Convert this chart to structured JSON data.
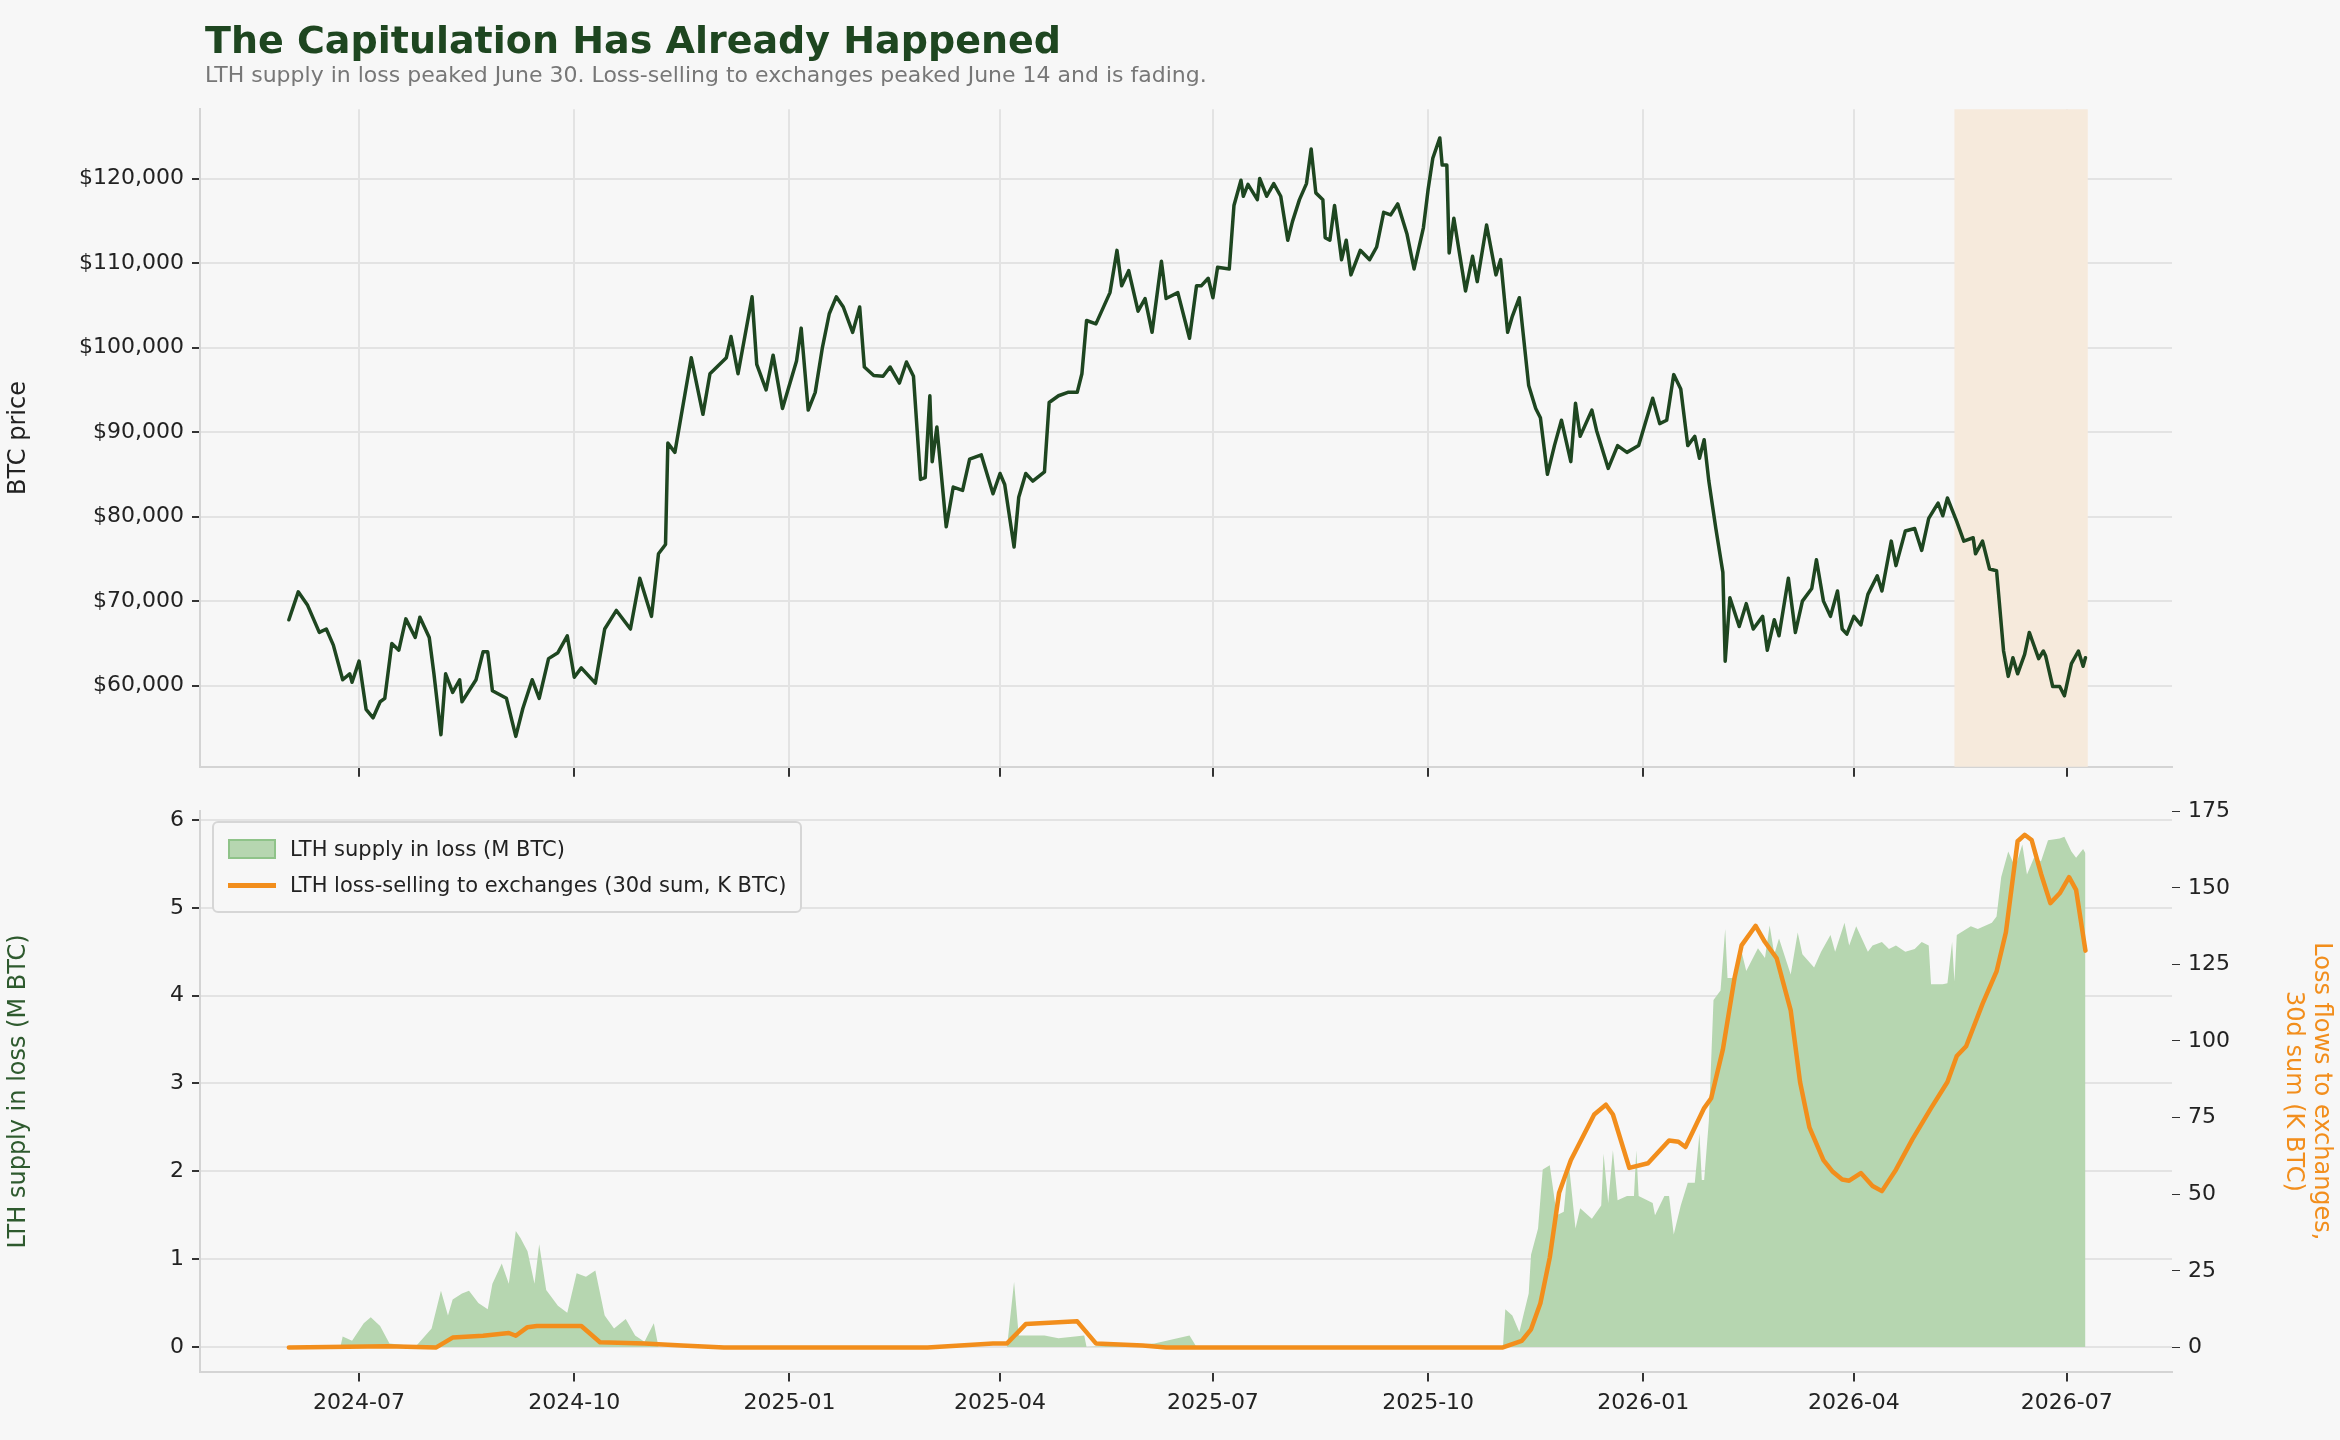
{
  "chart_data": [
    {
      "type": "line",
      "title": "The Capitulation Has Already Happened",
      "subtitle": "LTH supply in loss peaked June 30. Loss-selling to exchanges peaked June 14 and is fading.",
      "ylabel": "BTC price",
      "tick_labels": "y",
      "grid": true,
      "xlim": [
        "2024-04-24",
        "2026-08-15"
      ],
      "xticks": [
        {
          "value": "2024-07-01",
          "label": null
        },
        {
          "value": "2024-10-01",
          "label": null
        },
        {
          "value": "2025-01-01",
          "label": null
        },
        {
          "value": "2025-04-01",
          "label": null
        },
        {
          "value": "2025-07-01",
          "label": null
        },
        {
          "value": "2025-10-01",
          "label": null
        },
        {
          "value": "2026-01-01",
          "label": null
        },
        {
          "value": "2026-04-01",
          "label": null
        },
        {
          "value": "2026-07-01",
          "label": null
        }
      ],
      "ylim": [
        50400,
        128200
      ],
      "yticks": [
        {
          "value": 60000,
          "label": "$60,000"
        },
        {
          "value": 70000,
          "label": "$70,000"
        },
        {
          "value": 80000,
          "label": "$80,000"
        },
        {
          "value": 90000,
          "label": "$90,000"
        },
        {
          "value": 100000,
          "label": "$100,000"
        },
        {
          "value": 110000,
          "label": "$110,000"
        },
        {
          "value": 120000,
          "label": "$120,000"
        }
      ],
      "bands": [
        {
          "axis": "x",
          "from": "2026-05-14",
          "to": "2026-07-10",
          "color": "#f6eadc"
        }
      ],
      "series": [
        {
          "color": "#1e4620",
          "x": [
            "2024-06-01",
            "2024-06-05",
            "2024-06-09",
            "2024-06-14",
            "2024-06-17",
            "2024-06-20",
            "2024-06-24",
            "2024-06-27",
            "2024-06-28",
            "2024-07-01",
            "2024-07-04",
            "2024-07-07",
            "2024-07-10",
            "2024-07-12",
            "2024-07-15",
            "2024-07-18",
            "2024-07-21",
            "2024-07-25",
            "2024-07-27",
            "2024-07-31",
            "2024-08-02",
            "2024-08-05",
            "2024-08-07",
            "2024-08-10",
            "2024-08-13",
            "2024-08-14",
            "2024-08-20",
            "2024-08-23",
            "2024-08-25",
            "2024-08-27",
            "2024-09-02",
            "2024-09-06",
            "2024-09-09",
            "2024-09-13",
            "2024-09-16",
            "2024-09-20",
            "2024-09-24",
            "2024-09-28",
            "2024-10-01",
            "2024-10-04",
            "2024-10-10",
            "2024-10-14",
            "2024-10-19",
            "2024-10-25",
            "2024-10-29",
            "2024-11-03",
            "2024-11-06",
            "2024-11-09",
            "2024-11-10",
            "2024-11-13",
            "2024-11-15",
            "2024-11-20",
            "2024-11-25",
            "2024-11-28",
            "2024-12-05",
            "2024-12-07",
            "2024-12-10",
            "2024-12-16",
            "2024-12-18",
            "2024-12-22",
            "2024-12-25",
            "2024-12-29",
            "2025-01-04",
            "2025-01-06",
            "2025-01-09",
            "2025-01-12",
            "2025-01-15",
            "2025-01-18",
            "2025-01-21",
            "2025-01-24",
            "2025-01-28",
            "2025-01-31",
            "2025-02-02",
            "2025-02-06",
            "2025-02-10",
            "2025-02-13",
            "2025-02-17",
            "2025-02-20",
            "2025-02-23",
            "2025-02-26",
            "2025-02-28",
            "2025-03-02",
            "2025-03-03",
            "2025-03-05",
            "2025-03-09",
            "2025-03-12",
            "2025-03-16",
            "2025-03-19",
            "2025-03-24",
            "2025-03-29",
            "2025-04-01",
            "2025-04-03",
            "2025-04-07",
            "2025-04-09",
            "2025-04-12",
            "2025-04-15",
            "2025-04-20",
            "2025-04-22",
            "2025-04-26",
            "2025-04-30",
            "2025-05-04",
            "2025-05-06",
            "2025-05-08",
            "2025-05-12",
            "2025-05-18",
            "2025-05-21",
            "2025-05-23",
            "2025-05-26",
            "2025-05-30",
            "2025-06-02",
            "2025-06-05",
            "2025-06-09",
            "2025-06-11",
            "2025-06-16",
            "2025-06-21",
            "2025-06-24",
            "2025-06-26",
            "2025-06-29",
            "2025-07-01",
            "2025-07-03",
            "2025-07-08",
            "2025-07-10",
            "2025-07-13",
            "2025-07-14",
            "2025-07-16",
            "2025-07-20",
            "2025-07-21",
            "2025-07-24",
            "2025-07-27",
            "2025-07-30",
            "2025-08-02",
            "2025-08-04",
            "2025-08-07",
            "2025-08-10",
            "2025-08-12",
            "2025-08-14",
            "2025-08-17",
            "2025-08-18",
            "2025-08-20",
            "2025-08-22",
            "2025-08-25",
            "2025-08-27",
            "2025-08-29",
            "2025-09-02",
            "2025-09-06",
            "2025-09-09",
            "2025-09-12",
            "2025-09-15",
            "2025-09-18",
            "2025-09-22",
            "2025-09-25",
            "2025-09-29",
            "2025-10-01",
            "2025-10-03",
            "2025-10-06",
            "2025-10-07",
            "2025-10-09",
            "2025-10-10",
            "2025-10-12",
            "2025-10-17",
            "2025-10-20",
            "2025-10-22",
            "2025-10-26",
            "2025-10-30",
            "2025-11-01",
            "2025-11-04",
            "2025-11-06",
            "2025-11-09",
            "2025-11-13",
            "2025-11-16",
            "2025-11-18",
            "2025-11-21",
            "2025-11-24",
            "2025-11-27",
            "2025-12-01",
            "2025-12-03",
            "2025-12-05",
            "2025-12-10",
            "2025-12-12",
            "2025-12-17",
            "2025-12-21",
            "2025-12-25",
            "2025-12-30",
            "2026-01-05",
            "2026-01-08",
            "2026-01-11",
            "2026-01-14",
            "2026-01-17",
            "2026-01-20",
            "2026-01-23",
            "2026-01-25",
            "2026-01-27",
            "2026-01-29",
            "2026-02-01",
            "2026-02-04",
            "2026-02-05",
            "2026-02-07",
            "2026-02-11",
            "2026-02-14",
            "2026-02-17",
            "2026-02-21",
            "2026-02-23",
            "2026-02-26",
            "2026-02-28",
            "2026-03-04",
            "2026-03-07",
            "2026-03-10",
            "2026-03-14",
            "2026-03-16",
            "2026-03-19",
            "2026-03-22",
            "2026-03-25",
            "2026-03-27",
            "2026-03-29",
            "2026-04-01",
            "2026-04-04",
            "2026-04-07",
            "2026-04-11",
            "2026-04-13",
            "2026-04-17",
            "2026-04-19",
            "2026-04-23",
            "2026-04-27",
            "2026-04-30",
            "2026-05-03",
            "2026-05-07",
            "2026-05-09",
            "2026-05-11",
            "2026-05-15",
            "2026-05-18",
            "2026-05-22",
            "2026-05-23",
            "2026-05-26",
            "2026-05-29",
            "2026-06-01",
            "2026-06-04",
            "2026-06-06",
            "2026-06-08",
            "2026-06-10",
            "2026-06-13",
            "2026-06-15",
            "2026-06-19",
            "2026-06-21",
            "2026-06-22",
            "2026-06-25",
            "2026-06-28",
            "2026-06-30",
            "2026-07-03",
            "2026-07-06",
            "2026-07-08",
            "2026-07-09"
          ],
          "values": [
            67800,
            71100,
            69500,
            66300,
            66700,
            64800,
            60700,
            61400,
            60400,
            62900,
            57200,
            56200,
            58100,
            58500,
            65000,
            64200,
            67900,
            65700,
            68100,
            65700,
            61400,
            54200,
            61400,
            59200,
            60700,
            58100,
            60700,
            64000,
            64000,
            59400,
            58500,
            54000,
            57300,
            60700,
            58500,
            63200,
            63900,
            65900,
            61000,
            62100,
            60300,
            66700,
            68900,
            66700,
            72700,
            68200,
            75600,
            76700,
            88700,
            87600,
            90800,
            98800,
            92100,
            96900,
            98800,
            101300,
            96900,
            106000,
            98000,
            95000,
            99100,
            92800,
            98400,
            102300,
            92600,
            94700,
            99900,
            104000,
            106000,
            104800,
            101800,
            104800,
            97700,
            96700,
            96600,
            97700,
            95800,
            98300,
            96600,
            84400,
            84600,
            94300,
            86500,
            90600,
            78800,
            83500,
            83100,
            86800,
            87300,
            82700,
            85100,
            83800,
            76400,
            82300,
            85100,
            84200,
            85300,
            93500,
            94300,
            94700,
            94700,
            96900,
            103200,
            102800,
            106500,
            111500,
            107300,
            109100,
            104300,
            105800,
            101800,
            110200,
            105800,
            106500,
            101100,
            107300,
            107300,
            108200,
            105900,
            109500,
            109300,
            116800,
            119800,
            117900,
            119300,
            117500,
            120000,
            117900,
            119400,
            117900,
            112700,
            114900,
            117500,
            119400,
            123500,
            118300,
            117500,
            113000,
            112700,
            116800,
            110400,
            112700,
            108600,
            111500,
            110400,
            111900,
            116000,
            115700,
            117000,
            113400,
            109300,
            114200,
            118700,
            122400,
            124800,
            121600,
            121600,
            111200,
            115300,
            106700,
            110800,
            107800,
            114500,
            108600,
            110400,
            101800,
            103700,
            105900,
            95500,
            92800,
            91700,
            85000,
            88400,
            91400,
            86500,
            93400,
            89500,
            92600,
            90200,
            85700,
            88400,
            87600,
            88400,
            94000,
            91000,
            91400,
            96800,
            95100,
            88400,
            89500,
            86900,
            89100,
            84200,
            78600,
            73400,
            62900,
            70400,
            67000,
            69700,
            66700,
            68200,
            64200,
            67800,
            65900,
            72700,
            66300,
            70000,
            71500,
            74900,
            70000,
            68200,
            71200,
            66700,
            66100,
            68200,
            67200,
            70800,
            73000,
            71200,
            77100,
            74200,
            78300,
            78600,
            76000,
            79800,
            81600,
            80100,
            82200,
            79400,
            77100,
            77500,
            75600,
            77100,
            73800,
            73600,
            64100,
            61100,
            63300,
            61400,
            63700,
            66300,
            63200,
            64100,
            63500,
            59900,
            59900,
            58800,
            62600,
            64100,
            62300,
            63300
          ]
        }
      ]
    },
    {
      "type": "area",
      "ylabel": "LTH supply in loss (M BTC)",
      "y2label": "Loss flows to exchanges,\n30d sum (K BTC)",
      "legend": "top left",
      "grid": "y",
      "xlim": [
        "2024-04-24",
        "2026-08-15"
      ],
      "xticks": [
        {
          "value": "2024-07-01",
          "label": "2024-07"
        },
        {
          "value": "2024-10-01",
          "label": "2024-10"
        },
        {
          "value": "2025-01-01",
          "label": "2025-01"
        },
        {
          "value": "2025-04-01",
          "label": "2025-04"
        },
        {
          "value": "2025-07-01",
          "label": "2025-07"
        },
        {
          "value": "2025-10-01",
          "label": "2025-10"
        },
        {
          "value": "2026-01-01",
          "label": "2026-01"
        },
        {
          "value": "2026-04-01",
          "label": "2026-04"
        },
        {
          "value": "2026-07-01",
          "label": "2026-07"
        }
      ],
      "ylim": [
        -0.28,
        6.1
      ],
      "yticks": [
        0,
        1,
        2,
        3,
        4,
        5,
        6
      ],
      "y2lim": [
        -7.9,
        175
      ],
      "y2ticks": [
        0,
        25,
        50,
        75,
        100,
        125,
        150,
        175
      ],
      "series": [
        {
          "name": "LTH supply in loss (M BTC)",
          "color": "#b6d6b0",
          "x": [
            "2024-06-01",
            "2024-06-23",
            "2024-06-24",
            "2024-06-28",
            "2024-07-03",
            "2024-07-06",
            "2024-07-10",
            "2024-07-14",
            "2024-07-21",
            "2024-07-25",
            "2024-08-01",
            "2024-08-05",
            "2024-08-08",
            "2024-08-10",
            "2024-08-14",
            "2024-08-17",
            "2024-08-21",
            "2024-08-25",
            "2024-08-27",
            "2024-08-31",
            "2024-09-03",
            "2024-09-06",
            "2024-09-08",
            "2024-09-11",
            "2024-09-14",
            "2024-09-16",
            "2024-09-19",
            "2024-09-24",
            "2024-09-28",
            "2024-10-02",
            "2024-10-06",
            "2024-10-10",
            "2024-10-14",
            "2024-10-18",
            "2024-10-23",
            "2024-10-27",
            "2024-10-31",
            "2024-11-04",
            "2024-11-06",
            "2025-04-04",
            "2025-04-07",
            "2025-04-09",
            "2025-04-20",
            "2025-04-26",
            "2025-05-07",
            "2025-05-08",
            "2025-06-06",
            "2025-06-21",
            "2025-06-24",
            "2025-11-02",
            "2025-11-03",
            "2025-11-06",
            "2025-11-09",
            "2025-11-13",
            "2025-11-14",
            "2025-11-17",
            "2025-11-19",
            "2025-11-22",
            "2025-11-25",
            "2025-11-28",
            "2025-11-30",
            "2025-12-03",
            "2025-12-05",
            "2025-12-10",
            "2025-12-14",
            "2025-12-15",
            "2025-12-17",
            "2025-12-19",
            "2025-12-21",
            "2025-12-25",
            "2025-12-28",
            "2025-12-29",
            "2025-12-30",
            "2026-01-05",
            "2026-01-06",
            "2026-01-10",
            "2026-01-12",
            "2026-01-14",
            "2026-01-17",
            "2026-01-20",
            "2026-01-23",
            "2026-01-25",
            "2026-01-26",
            "2026-01-27",
            "2026-01-29",
            "2026-01-31",
            "2026-02-03",
            "2026-02-05",
            "2026-02-06",
            "2026-02-09",
            "2026-02-12",
            "2026-02-14",
            "2026-02-19",
            "2026-02-22",
            "2026-02-24",
            "2026-02-26",
            "2026-02-28",
            "2026-03-05",
            "2026-03-08",
            "2026-03-10",
            "2026-03-15",
            "2026-03-18",
            "2026-03-22",
            "2026-03-24",
            "2026-03-28",
            "2026-03-30",
            "2026-04-02",
            "2026-04-07",
            "2026-04-09",
            "2026-04-13",
            "2026-04-16",
            "2026-04-19",
            "2026-04-23",
            "2026-04-27",
            "2026-04-30",
            "2026-05-03",
            "2026-05-04",
            "2026-05-09",
            "2026-05-11",
            "2026-05-13",
            "2026-05-14",
            "2026-05-15",
            "2026-05-21",
            "2026-05-24",
            "2026-05-30",
            "2026-06-01",
            "2026-06-03",
            "2026-06-06",
            "2026-06-09",
            "2026-06-12",
            "2026-06-14",
            "2026-06-17",
            "2026-06-20",
            "2026-06-23",
            "2026-06-28",
            "2026-06-30",
            "2026-07-03",
            "2026-07-05",
            "2026-07-08",
            "2026-07-09"
          ],
          "values": [
            0,
            0,
            0.12,
            0.07,
            0.27,
            0.34,
            0.24,
            0.04,
            0.02,
            0,
            0.21,
            0.64,
            0.36,
            0.54,
            0.61,
            0.64,
            0.5,
            0.43,
            0.72,
            0.95,
            0.72,
            1.32,
            1.24,
            1.09,
            0.72,
            1.17,
            0.65,
            0.47,
            0.39,
            0.84,
            0.8,
            0.87,
            0.36,
            0.21,
            0.32,
            0.13,
            0.06,
            0.27,
            0,
            0,
            0.74,
            0.13,
            0.13,
            0.1,
            0.13,
            0,
            0.04,
            0.13,
            0,
            0,
            0.43,
            0.36,
            0.17,
            0.61,
            1.05,
            1.35,
            2.02,
            2.07,
            1.5,
            1.54,
            2.13,
            1.35,
            1.58,
            1.46,
            1.61,
            2.2,
            1.64,
            2.24,
            1.67,
            1.72,
            1.72,
            2.24,
            1.72,
            1.64,
            1.5,
            1.72,
            1.72,
            1.28,
            1.61,
            1.87,
            1.87,
            2.43,
            1.9,
            1.9,
            2.57,
            3.95,
            4.06,
            4.76,
            4.2,
            4.2,
            4.5,
            4.28,
            4.54,
            4.43,
            4.8,
            4.47,
            4.65,
            4.24,
            4.72,
            4.47,
            4.32,
            4.5,
            4.69,
            4.5,
            4.83,
            4.57,
            4.79,
            4.5,
            4.57,
            4.61,
            4.53,
            4.57,
            4.5,
            4.53,
            4.61,
            4.57,
            4.13,
            4.13,
            4.14,
            4.61,
            4.16,
            4.69,
            4.79,
            4.76,
            4.83,
            4.9,
            5.35,
            5.64,
            5.46,
            5.72,
            5.38,
            5.57,
            5.53,
            5.77,
            5.79,
            5.81,
            5.64,
            5.57,
            5.67,
            5.62
          ]
        },
        {
          "name": "LTH loss-selling to exchanges (30d sum, K BTC)",
          "type": "line",
          "axis": "y2",
          "color": "#f28e1c",
          "x": [
            "2024-06-01",
            "2024-07-13",
            "2024-08-03",
            "2024-08-10",
            "2024-08-23",
            "2024-09-03",
            "2024-09-06",
            "2024-09-11",
            "2024-09-15",
            "2024-10-04",
            "2024-10-12",
            "2024-10-31",
            "2024-11-16",
            "2024-12-04",
            "2025-03-01",
            "2025-03-29",
            "2025-04-04",
            "2025-04-12",
            "2025-05-04",
            "2025-05-12",
            "2025-06-01",
            "2025-06-11",
            "2025-11-02",
            "2025-11-10",
            "2025-11-14",
            "2025-11-18",
            "2025-11-22",
            "2025-11-26",
            "2025-12-01",
            "2025-12-11",
            "2025-12-16",
            "2025-12-19",
            "2025-12-26",
            "2026-01-03",
            "2026-01-12",
            "2026-01-16",
            "2026-01-19",
            "2026-01-27",
            "2026-01-30",
            "2026-02-04",
            "2026-02-09",
            "2026-02-12",
            "2026-02-18",
            "2026-02-22",
            "2026-02-27",
            "2026-03-05",
            "2026-03-09",
            "2026-03-13",
            "2026-03-19",
            "2026-03-23",
            "2026-03-27",
            "2026-03-30",
            "2026-04-04",
            "2026-04-09",
            "2026-04-13",
            "2026-04-19",
            "2026-04-26",
            "2026-05-04",
            "2026-05-11",
            "2026-05-15",
            "2026-05-19",
            "2026-05-26",
            "2026-06-01",
            "2026-06-05",
            "2026-06-10",
            "2026-06-13",
            "2026-06-16",
            "2026-06-20",
            "2026-06-24",
            "2026-06-28",
            "2026-07-02",
            "2026-07-05",
            "2026-07-09"
          ],
          "values": [
            0,
            0.4,
            0,
            3.2,
            3.8,
            4.7,
            3.8,
            6.6,
            7,
            7,
            1.7,
            1.3,
            0.6,
            0,
            0,
            1.3,
            1.3,
            7.6,
            8.5,
            1.3,
            0.6,
            0,
            0,
            2.1,
            5.9,
            14.4,
            29.3,
            50.5,
            61.1,
            76,
            79.2,
            76,
            58.6,
            60.1,
            67.5,
            67.1,
            65.4,
            78.1,
            81.3,
            97.2,
            120.6,
            131.2,
            137.6,
            132.3,
            127,
            110,
            86.6,
            71.8,
            61.1,
            57.3,
            54.8,
            54.4,
            56.9,
            52.7,
            51,
            58,
            67.9,
            78.1,
            86.6,
            95.1,
            98.3,
            112.1,
            122.7,
            135.5,
            165.2,
            167.3,
            165.6,
            154.6,
            145,
            148.2,
            153.5,
            149.3,
            129.5
          ]
        }
      ]
    }
  ]
}
